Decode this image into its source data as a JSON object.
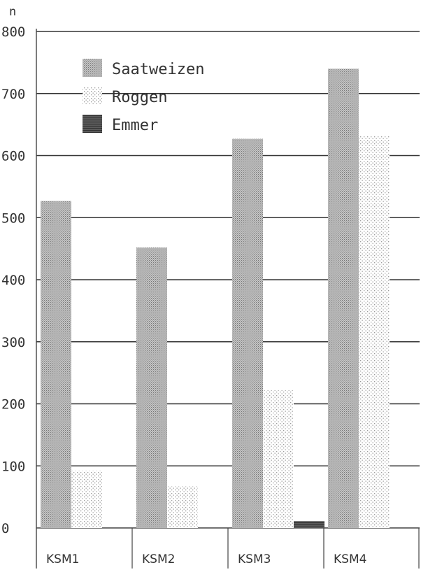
{
  "colors": {
    "background": "#ffffff",
    "gridline": "#333333",
    "axis": "#444444",
    "saatweizen": "#b8b8b8",
    "roggen": "#e6e6e6",
    "emmer": "#6e6e6e"
  },
  "chart_data": {
    "type": "bar",
    "title": "",
    "xlabel": "",
    "ylabel": "n",
    "ylim": [
      0,
      800
    ],
    "yticks": [
      0,
      100,
      200,
      300,
      400,
      500,
      600,
      700,
      800
    ],
    "grid": true,
    "legend_position": "top-left",
    "categories": [
      "KSM1",
      "KSM2",
      "KSM3",
      "KSM4"
    ],
    "series": [
      {
        "name": "Saatweizen",
        "values": [
          527,
          452,
          627,
          740
        ],
        "pattern": "dense-dots"
      },
      {
        "name": "Roggen",
        "values": [
          92,
          67,
          222,
          632
        ],
        "pattern": "sparse-dots"
      },
      {
        "name": "Emmer",
        "values": [
          0,
          0,
          11,
          0
        ],
        "pattern": "dark-lines"
      }
    ]
  }
}
